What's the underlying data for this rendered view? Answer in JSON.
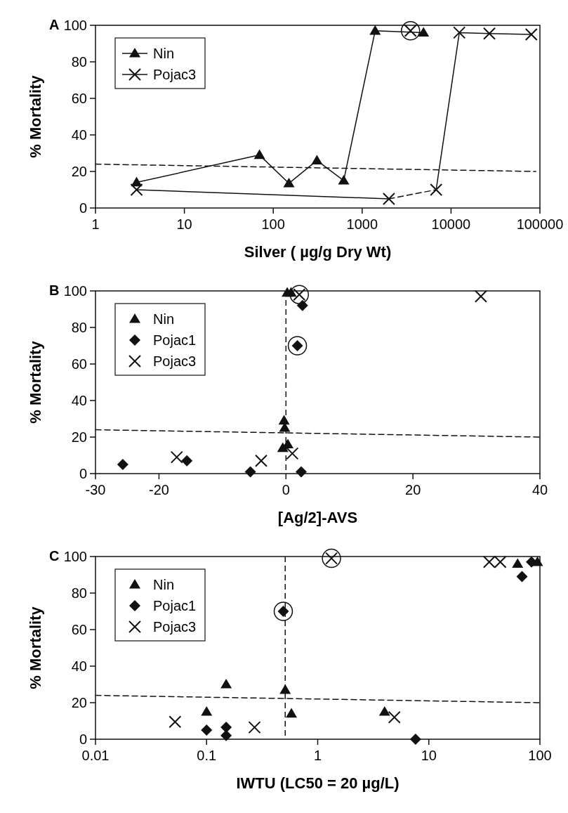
{
  "chart_data": [
    {
      "type": "line",
      "title": "A",
      "xlabel": "Silver ( µg/g Dry Wt)",
      "ylabel": "% Mortality",
      "log": "x",
      "xlim": [
        1,
        100000
      ],
      "xticks": [
        1,
        10,
        100,
        1000,
        10000,
        100000
      ],
      "ylim": [
        0,
        100
      ],
      "yticks": [
        0,
        20,
        40,
        60,
        80,
        100
      ],
      "legend": "top left",
      "grid": false,
      "series": [
        {
          "name": "Nin",
          "color": "#111111",
          "marker": "triangle",
          "line_style": "solid",
          "x": [
            2.9,
            70,
            150,
            310,
            620,
            1400,
            4900
          ],
          "values": [
            14,
            29,
            13.5,
            26,
            15,
            97,
            96
          ]
        },
        {
          "name": "Pojac3",
          "color": "#111111",
          "marker": "cross",
          "line_style": "solid",
          "x": [
            2.9,
            2000
          ],
          "values": [
            10,
            5
          ]
        },
        {
          "color": "#111111",
          "line_style": "dashed",
          "x": [
            2000,
            6800
          ],
          "values": [
            5,
            10
          ]
        },
        {
          "color": "#111111",
          "marker": "cross",
          "line_style": "solid",
          "x": [
            6800,
            12400,
            27000,
            80000
          ],
          "values": [
            10,
            96,
            95.5,
            95
          ]
        },
        {
          "type": "scatter",
          "color": "#111111",
          "marker": "circle",
          "x": [
            3500
          ],
          "values": [
            97
          ]
        },
        {
          "type": "scatter",
          "color": "#111111",
          "marker": "cross",
          "x": [
            3500
          ],
          "values": [
            97
          ]
        },
        {
          "color": "#111111",
          "line_style": "dashed",
          "x": [
            1,
            90000
          ],
          "values": [
            24,
            20
          ]
        }
      ]
    },
    {
      "type": "scatter",
      "title": "B",
      "xlabel": "[Ag/2]-AVS",
      "ylabel": "% Mortality",
      "xlim": [
        -30,
        40
      ],
      "xticks": [
        -30,
        -20,
        0,
        20,
        40
      ],
      "ylim": [
        0,
        100
      ],
      "yticks": [
        0,
        20,
        40,
        60,
        80,
        100
      ],
      "legend": "top left",
      "grid": false,
      "series": [
        {
          "name": "Nin",
          "color": "#111111",
          "marker": "triangle",
          "x": [
            0.2,
            0.8,
            -0.3,
            -0.2,
            -0.5,
            0.3
          ],
          "values": [
            99,
            99,
            29,
            25,
            14,
            16
          ]
        },
        {
          "color": "#111111",
          "marker": "circle",
          "x": [
            2.1,
            1.8
          ],
          "values": [
            98,
            70
          ]
        },
        {
          "name": "Pojac1",
          "color": "#111111",
          "marker": "diamond",
          "x": [
            -25.7,
            -15.6,
            -5.6,
            2.4,
            2.6,
            1.8
          ],
          "values": [
            5,
            7,
            1,
            1,
            92,
            70
          ]
        },
        {
          "name": "Pojac3",
          "color": "#111111",
          "marker": "cross",
          "x": [
            -17.2,
            -3.9,
            1,
            30.7,
            2.1
          ],
          "values": [
            9,
            7,
            11,
            97,
            98
          ]
        },
        {
          "type": "line",
          "color": "#111111",
          "line_style": "dashed",
          "x": [
            -30,
            40
          ],
          "values": [
            24,
            20
          ]
        }
      ],
      "ref_lines": [
        {
          "axis": "x",
          "value": 0,
          "color": "#111111",
          "line_style": "dashed"
        }
      ]
    },
    {
      "type": "scatter",
      "title": "C",
      "xlabel": "IWTU (LC50 = 20 µg/L)",
      "ylabel": "% Mortality",
      "log": "x",
      "xlim": [
        0.01,
        100
      ],
      "xticks": [
        0.01,
        0.1,
        1,
        10,
        100
      ],
      "ylim": [
        0,
        100
      ],
      "yticks": [
        0,
        20,
        40,
        60,
        80,
        100
      ],
      "legend": "top left",
      "grid": false,
      "series": [
        {
          "name": "Nin",
          "color": "#111111",
          "marker": "triangle",
          "x": [
            0.1,
            0.15,
            0.51,
            0.58,
            4,
            63,
            95
          ],
          "values": [
            15,
            30,
            27,
            14,
            15,
            96,
            97
          ]
        },
        {
          "color": "#111111",
          "marker": "circle",
          "x": [
            1.33,
            0.49
          ],
          "values": [
            99,
            70
          ]
        },
        {
          "name": "Pojac1",
          "color": "#111111",
          "marker": "diamond",
          "x": [
            0.1,
            0.15,
            0.15,
            0.49,
            7.6,
            69,
            84
          ],
          "values": [
            5,
            6.5,
            2,
            70,
            0,
            89,
            97
          ]
        },
        {
          "name": "Pojac3",
          "color": "#111111",
          "marker": "cross",
          "x": [
            0.052,
            0.27,
            4.9,
            35,
            44,
            1.33
          ],
          "values": [
            9.5,
            6.5,
            12,
            97,
            97,
            99
          ]
        },
        {
          "type": "line",
          "color": "#111111",
          "line_style": "dashed",
          "x": [
            0.01,
            100
          ],
          "values": [
            24,
            20
          ]
        }
      ],
      "ref_lines": [
        {
          "axis": "x",
          "value": 0.51,
          "color": "#111111",
          "line_style": "dashed"
        }
      ]
    }
  ]
}
